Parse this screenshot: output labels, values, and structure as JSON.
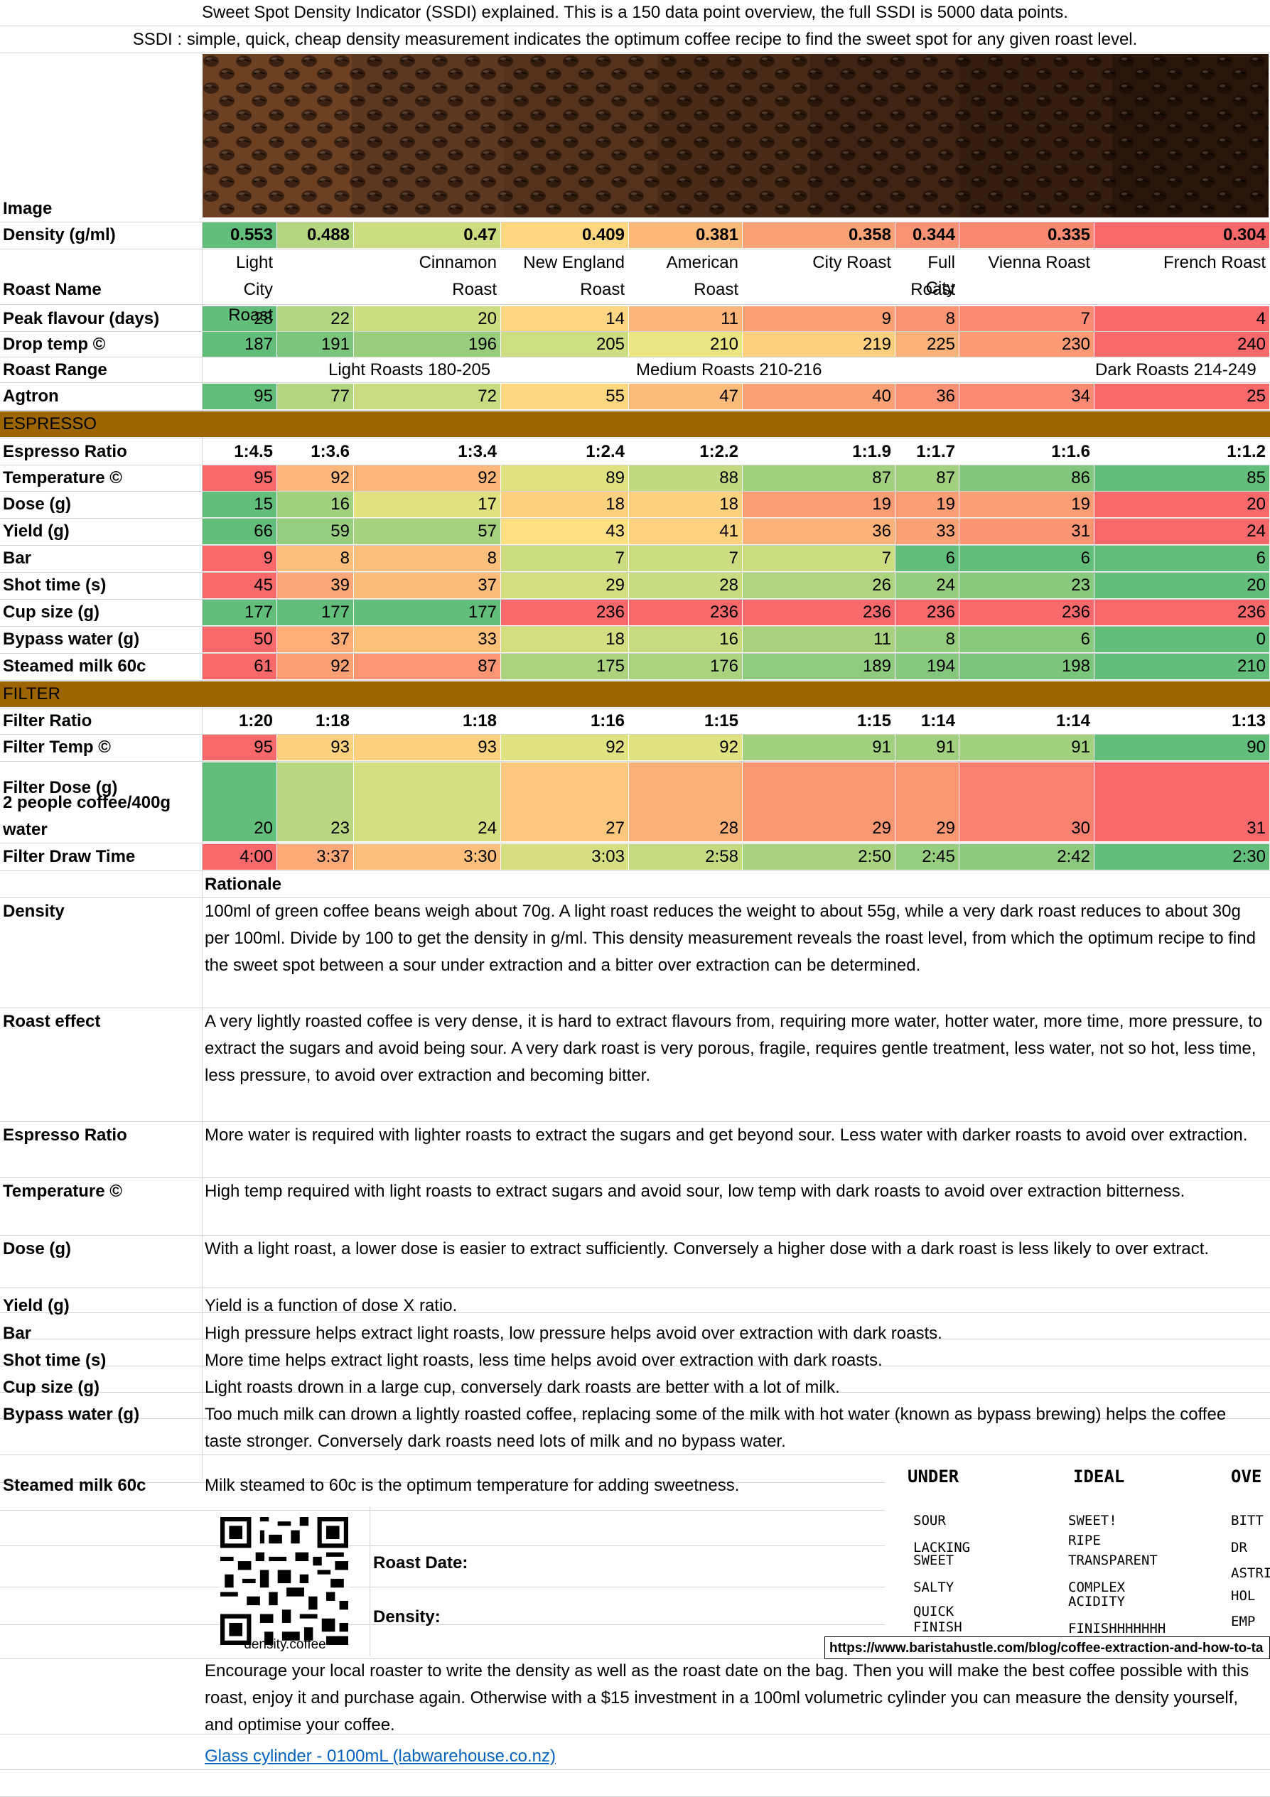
{
  "header": {
    "line1": "Sweet Spot Density Indicator (SSDI) explained. This is a 150 data point overview, the full SSDI is 5000 data points.",
    "line2": "SSDI : simple, quick, cheap density measurement indicates the optimum coffee recipe to find the sweet spot for any given roast level."
  },
  "image_label": "Image",
  "roast_name_label": "Roast Name",
  "roast_names": [
    "Light|City Roast",
    "",
    "Cinnamon|Roast",
    "New England|Roast",
    "American|Roast",
    "City Roast",
    "Full City|Roast",
    "Vienna Roast",
    "French Roast"
  ],
  "roast_range": {
    "label": "Roast Range",
    "light": "Light Roasts 180-205",
    "medium": "Medium Roasts 210-216",
    "dark": "Dark Roasts 214-249"
  },
  "sections": {
    "espresso": "ESPRESSO",
    "filter": "FILTER"
  },
  "rows": {
    "density": {
      "label": "Density (g/ml)",
      "values": [
        "0.553",
        "0.488",
        "0.47",
        "0.409",
        "0.381",
        "0.358",
        "0.344",
        "0.335",
        "0.304"
      ]
    },
    "peak": {
      "label": "Peak flavour (days)",
      "values": [
        "28",
        "22",
        "20",
        "14",
        "11",
        "9",
        "8",
        "7",
        "4"
      ]
    },
    "drop": {
      "label": "Drop temp ©",
      "values": [
        "187",
        "191",
        "196",
        "205",
        "210",
        "219",
        "225",
        "230",
        "240"
      ]
    },
    "agtron": {
      "label": "Agtron",
      "values": [
        "95",
        "77",
        "72",
        "55",
        "47",
        "40",
        "36",
        "34",
        "25"
      ]
    },
    "eratio": {
      "label": "Espresso Ratio",
      "values": [
        "1:4.5",
        "1:3.6",
        "1:3.4",
        "1:2.4",
        "1:2.2",
        "1:1.9",
        "1:1.7",
        "1:1.6",
        "1:1.2"
      ]
    },
    "etemp": {
      "label": "Temperature ©",
      "values": [
        "95",
        "92",
        "92",
        "89",
        "88",
        "87",
        "87",
        "86",
        "85"
      ]
    },
    "dose": {
      "label": "Dose (g)",
      "values": [
        "15",
        "16",
        "17",
        "18",
        "18",
        "19",
        "19",
        "19",
        "20"
      ]
    },
    "yield": {
      "label": "Yield (g)",
      "values": [
        "66",
        "59",
        "57",
        "43",
        "41",
        "36",
        "33",
        "31",
        "24"
      ]
    },
    "bar": {
      "label": "Bar",
      "values": [
        "9",
        "8",
        "8",
        "7",
        "7",
        "7",
        "6",
        "6",
        "6"
      ]
    },
    "shot": {
      "label": "Shot time (s)",
      "values": [
        "45",
        "39",
        "37",
        "29",
        "28",
        "26",
        "24",
        "23",
        "20"
      ]
    },
    "cup": {
      "label": "Cup size (g)",
      "values": [
        "177",
        "177",
        "177",
        "236",
        "236",
        "236",
        "236",
        "236",
        "236"
      ]
    },
    "bypass": {
      "label": "Bypass water (g)",
      "values": [
        "50",
        "37",
        "33",
        "18",
        "16",
        "11",
        "8",
        "6",
        "0"
      ]
    },
    "milk": {
      "label": "Steamed milk 60c",
      "values": [
        "61",
        "92",
        "87",
        "175",
        "176",
        "189",
        "194",
        "198",
        "210"
      ]
    },
    "fratio": {
      "label": "Filter Ratio",
      "values": [
        "1:20",
        "1:18",
        "1:18",
        "1:16",
        "1:15",
        "1:15",
        "1:14",
        "1:14",
        "1:13"
      ]
    },
    "ftemp": {
      "label": "Filter Temp ©",
      "values": [
        "95",
        "93",
        "93",
        "92",
        "92",
        "91",
        "91",
        "91",
        "90"
      ]
    },
    "fdose": {
      "label1": "Filter Dose (g)",
      "label2": "2 people coffee/400g",
      "label3": "water",
      "values": [
        "20",
        "23",
        "24",
        "27",
        "28",
        "29",
        "29",
        "30",
        "31"
      ]
    },
    "fdraw": {
      "label": "Filter Draw Time",
      "values": [
        "4:00",
        "3:37",
        "3:30",
        "3:03",
        "2:58",
        "2:50",
        "2:45",
        "2:42",
        "2:30"
      ]
    }
  },
  "rationale": {
    "header": "Rationale",
    "items": [
      {
        "label": "Density",
        "text": "100ml of green coffee beans weigh about 70g. A light roast reduces the weight to about 55g, while a very dark roast reduces to about 30g per 100ml. Divide by 100 to get the density in g/ml. This density measurement reveals the roast level, from which the optimum recipe to find the sweet spot between a sour under extraction and a bitter over extraction can be determined."
      },
      {
        "label": "Roast effect",
        "text": "A very lightly roasted coffee is very dense, it is hard to extract flavours from, requiring more water, hotter water, more time, more pressure, to extract the sugars and avoid being sour. A very dark roast is very porous, fragile, requires gentle treatment, less water, not so hot, less time, less pressure, to avoid over extraction and becoming bitter."
      },
      {
        "label": "Espresso Ratio",
        "text": "More water is required with lighter roasts to extract the sugars and get beyond sour. Less water with darker roasts to avoid over extraction."
      },
      {
        "label": "Temperature ©",
        "text": "High temp required with light roasts to extract sugars and avoid sour, low temp with dark roasts to avoid over extraction bitterness."
      },
      {
        "label": "Dose (g)",
        "text": "With a light roast, a lower dose is easier to extract sufficiently. Conversely a higher dose with a dark roast is less likely to over extract."
      },
      {
        "label": "Yield (g)",
        "text": "Yield is a function of dose X ratio."
      },
      {
        "label": "Bar",
        "text": "High pressure helps extract light roasts, low pressure helps avoid over extraction with dark roasts."
      },
      {
        "label": "Shot time (s)",
        "text": "More time helps extract light roasts, less time helps avoid over extraction with dark roasts."
      },
      {
        "label": "Cup size (g)",
        "text": "Light roasts drown in a large cup, conversely dark roasts are better with a lot of milk."
      },
      {
        "label": "Bypass water (g)",
        "text": "Too much milk can drown a lightly roasted coffee, replacing some of the milk with hot water (known as bypass brewing) helps the coffee taste stronger. Conversely dark roasts need lots of milk and no bypass water."
      },
      {
        "label": "Steamed milk 60c",
        "text": "Milk steamed to 60c is the optimum temperature for adding sweetness."
      }
    ]
  },
  "label_box": {
    "roast_date": "Roast Date:",
    "density": "Density:",
    "qr_caption": "density.coffee"
  },
  "extraction": {
    "under_title": "UNDER",
    "ideal_title": "IDEAL",
    "over_title": "OVE",
    "under": [
      "SOUR",
      "LACKING",
      "SWEET",
      "SALTY",
      "QUICK",
      "FINISH"
    ],
    "ideal": [
      "SWEET!",
      "RIPE",
      "TRANSPARENT",
      "COMPLEX",
      "ACIDITY",
      "FINISHHHHHHH"
    ],
    "over": [
      "BITT",
      "DR",
      "ASTRIN",
      "HOL",
      "EMP"
    ],
    "source_url": "https://www.baristahustle.com/blog/coffee-extraction-and-how-to-ta"
  },
  "footer": {
    "text": "Encourage your local roaster to write the density as well as the roast date on the bag. Then you will make the best coffee possible with this roast, enjoy it and purchase again. Otherwise with a $15 investment in a 100ml volumetric cylinder you can measure the density yourself, and optimise your coffee.",
    "link": "Glass cylinder - 0100mL (labwarehouse.co.nz)"
  },
  "colors": {
    "section_bar": "#9C6500",
    "scale_green": "#63BE7B",
    "scale_yellow": "#FFEB84",
    "scale_red": "#F8696B",
    "link": "#0563C1"
  }
}
